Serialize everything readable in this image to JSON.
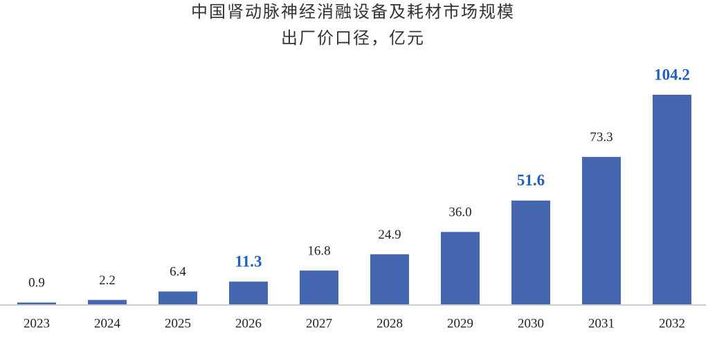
{
  "chart_data": {
    "type": "bar",
    "title": "中国肾动脉神经消融设备及耗材市场规模",
    "subtitle": "出厂价口径，亿元",
    "categories": [
      "2023",
      "2024",
      "2025",
      "2026",
      "2027",
      "2028",
      "2029",
      "2030",
      "2031",
      "2032"
    ],
    "values": [
      0.9,
      2.2,
      6.4,
      11.3,
      16.8,
      24.9,
      36.0,
      51.6,
      73.3,
      104.2
    ],
    "value_labels": [
      "0.9",
      "2.2",
      "6.4",
      "11.3",
      "16.8",
      "24.9",
      "36.0",
      "51.6",
      "73.3",
      "104.2"
    ],
    "color": "#4467b0",
    "highlighted": [
      3,
      7,
      9
    ],
    "highlight_color": "#1f5fbf"
  }
}
